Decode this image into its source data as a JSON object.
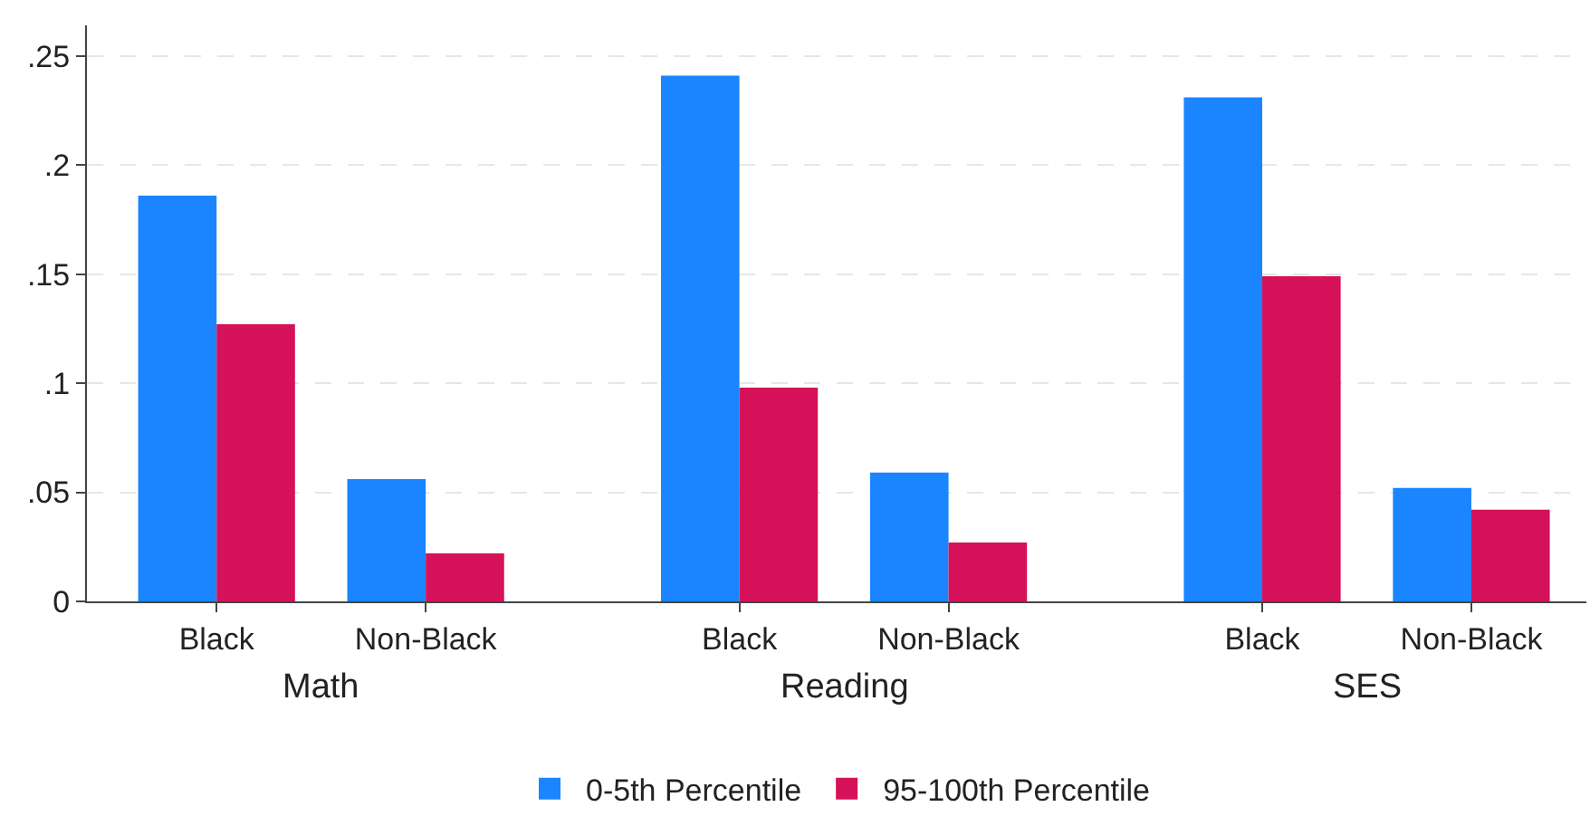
{
  "chart_data": {
    "type": "bar",
    "categories": [
      "Black",
      "Non-Black",
      "Black",
      "Non-Black",
      "Black",
      "Non-Black"
    ],
    "series": [
      {
        "name": "0-5th Percentile",
        "color": "#1a85ff",
        "values": [
          0.186,
          0.056,
          0.241,
          0.059,
          0.231,
          0.052
        ]
      },
      {
        "name": "95-100th Percentile",
        "color": "#d41159",
        "values": [
          0.127,
          0.022,
          0.098,
          0.027,
          0.149,
          0.042
        ]
      }
    ],
    "annotations": [
      "Math",
      "Reading",
      "SES"
    ],
    "ylim": [
      0,
      0.264
    ],
    "yticks": [
      0,
      {
        "value": 0.05,
        "label": ".05"
      },
      {
        "value": 0.1,
        "label": ".1"
      },
      {
        "value": 0.15,
        "label": ".15"
      },
      {
        "value": 0.2,
        "label": ".2"
      },
      {
        "value": 0.25,
        "label": ".25"
      }
    ],
    "grid": "y",
    "legend": "bottom"
  }
}
